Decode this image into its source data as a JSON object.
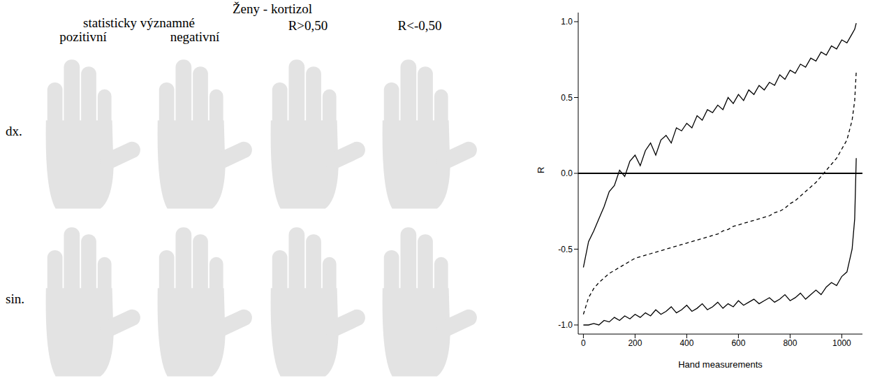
{
  "figure": {
    "title": "Ženy - kortizol",
    "group_header": "statisticky významné",
    "columns": [
      "pozitivní",
      "negativní",
      "R>0,50",
      "R<-0,50"
    ],
    "rows": [
      "dx.",
      "sin."
    ]
  },
  "chart_data": {
    "type": "line",
    "x_label": "Hand measurements",
    "y_label": "R",
    "xlim": [
      -20,
      1080
    ],
    "xticks": [
      0,
      200,
      400,
      600,
      800,
      1000
    ],
    "ylim": [
      -1.06,
      1.06
    ],
    "yticks": [
      {
        "value": -1,
        "label": "-1.0"
      },
      -0.5,
      {
        "value": 0,
        "label": "0.0"
      },
      0.5,
      {
        "value": 1,
        "label": "1.0"
      }
    ],
    "grid": false,
    "hline": 0,
    "x": [
      0,
      20,
      40,
      60,
      80,
      100,
      120,
      140,
      160,
      180,
      200,
      220,
      240,
      260,
      280,
      300,
      320,
      340,
      360,
      380,
      400,
      420,
      440,
      460,
      480,
      500,
      520,
      540,
      560,
      580,
      600,
      620,
      640,
      660,
      680,
      700,
      720,
      740,
      760,
      780,
      800,
      820,
      840,
      860,
      880,
      900,
      920,
      940,
      960,
      980,
      1000,
      1020,
      1040,
      1050,
      1056
    ],
    "series": [
      {
        "color": "#000000",
        "line_style": "solid",
        "values": [
          -0.62,
          -0.45,
          -0.38,
          -0.3,
          -0.22,
          -0.12,
          -0.08,
          0.02,
          -0.02,
          0.08,
          0.12,
          0.05,
          0.15,
          0.2,
          0.12,
          0.22,
          0.25,
          0.2,
          0.3,
          0.28,
          0.33,
          0.3,
          0.38,
          0.35,
          0.42,
          0.4,
          0.45,
          0.42,
          0.5,
          0.46,
          0.52,
          0.48,
          0.55,
          0.52,
          0.58,
          0.55,
          0.6,
          0.58,
          0.65,
          0.62,
          0.68,
          0.66,
          0.72,
          0.7,
          0.76,
          0.74,
          0.8,
          0.78,
          0.84,
          0.82,
          0.88,
          0.86,
          0.92,
          0.95,
          0.99
        ]
      },
      {
        "color": "#000000",
        "line_style": "solid",
        "values": [
          -1.0,
          -1.0,
          -0.99,
          -1.0,
          -0.97,
          -0.98,
          -0.95,
          -0.97,
          -0.94,
          -0.96,
          -0.93,
          -0.95,
          -0.92,
          -0.94,
          -0.9,
          -0.93,
          -0.91,
          -0.88,
          -0.92,
          -0.9,
          -0.87,
          -0.91,
          -0.89,
          -0.86,
          -0.9,
          -0.88,
          -0.85,
          -0.89,
          -0.86,
          -0.88,
          -0.84,
          -0.87,
          -0.85,
          -0.83,
          -0.86,
          -0.84,
          -0.82,
          -0.85,
          -0.83,
          -0.8,
          -0.84,
          -0.82,
          -0.79,
          -0.83,
          -0.8,
          -0.77,
          -0.8,
          -0.75,
          -0.72,
          -0.74,
          -0.68,
          -0.65,
          -0.5,
          -0.3,
          0.1
        ]
      },
      {
        "color": "#000000",
        "line_style": "dashed",
        "values": [
          -0.93,
          -0.82,
          -0.76,
          -0.72,
          -0.69,
          -0.66,
          -0.64,
          -0.62,
          -0.6,
          -0.58,
          -0.56,
          -0.55,
          -0.54,
          -0.53,
          -0.52,
          -0.51,
          -0.5,
          -0.49,
          -0.48,
          -0.47,
          -0.46,
          -0.45,
          -0.44,
          -0.43,
          -0.42,
          -0.41,
          -0.4,
          -0.38,
          -0.37,
          -0.35,
          -0.34,
          -0.33,
          -0.32,
          -0.31,
          -0.3,
          -0.29,
          -0.28,
          -0.26,
          -0.25,
          -0.23,
          -0.2,
          -0.18,
          -0.15,
          -0.12,
          -0.09,
          -0.06,
          -0.02,
          0.02,
          0.06,
          0.1,
          0.16,
          0.22,
          0.35,
          0.48,
          0.67
        ]
      }
    ]
  }
}
